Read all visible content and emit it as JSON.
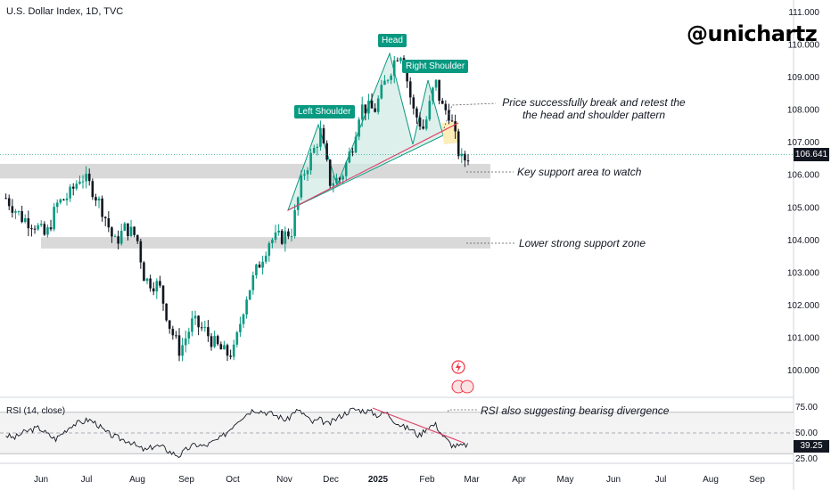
{
  "header": {
    "title": "U.S. Dollar Index, 1D, TVC",
    "brand": "@unichartz"
  },
  "rsi_panel": {
    "title": "RSI (14, close)",
    "current": "39.25"
  },
  "price_badge": "106.641",
  "annotations": {
    "left_shoulder": "Left Shoulder",
    "head": "Head",
    "right_shoulder": "Right Shoulder",
    "break_note": "Price successfully break and retest the the head and shoulder pattern",
    "key_support": "Key support area to watch",
    "lower_support": "Lower strong support zone",
    "rsi_note": "RSI also suggesting bearisg divergence"
  },
  "colors": {
    "up": "#089981",
    "down": "#131722",
    "zone": "#d9d9d9",
    "pattern_fill": "#cfe9e2",
    "neckline": "#e0446a",
    "rsi_line": "#131722",
    "rsi_trend": "#e0446a"
  },
  "chart_data": {
    "type": "candlestick",
    "instrument": "U.S. Dollar Index",
    "timeframe": "1D",
    "y_axis": {
      "ticks": [
        100.0,
        101.0,
        102.0,
        103.0,
        104.0,
        105.0,
        106.0,
        107.0,
        108.0,
        109.0,
        110.0,
        111.0
      ],
      "range": [
        99.7,
        111.3
      ]
    },
    "x_axis": {
      "ticks": [
        "Jun",
        "Jul",
        "Aug",
        "Sep",
        "Oct",
        "Nov",
        "Dec",
        "2025",
        "Feb",
        "Mar",
        "Apr",
        "May",
        "Jun",
        "Jul",
        "Aug",
        "Sep"
      ]
    },
    "close_path": [
      {
        "t": "2024-05-10",
        "c": 105.3
      },
      {
        "t": "2024-05-20",
        "c": 104.7
      },
      {
        "t": "2024-05-28",
        "c": 104.5
      },
      {
        "t": "2024-06-04",
        "c": 104.1
      },
      {
        "t": "2024-06-11",
        "c": 105.1
      },
      {
        "t": "2024-06-19",
        "c": 105.4
      },
      {
        "t": "2024-06-26",
        "c": 106.0
      },
      {
        "t": "2024-07-03",
        "c": 105.6
      },
      {
        "t": "2024-07-10",
        "c": 104.9
      },
      {
        "t": "2024-07-17",
        "c": 103.9
      },
      {
        "t": "2024-07-24",
        "c": 104.4
      },
      {
        "t": "2024-07-31",
        "c": 104.1
      },
      {
        "t": "2024-08-05",
        "c": 102.8
      },
      {
        "t": "2024-08-14",
        "c": 102.6
      },
      {
        "t": "2024-08-21",
        "c": 101.3
      },
      {
        "t": "2024-08-27",
        "c": 100.6
      },
      {
        "t": "2024-09-04",
        "c": 101.5
      },
      {
        "t": "2024-09-12",
        "c": 101.2
      },
      {
        "t": "2024-09-18",
        "c": 100.8
      },
      {
        "t": "2024-09-25",
        "c": 100.5
      },
      {
        "t": "2024-09-30",
        "c": 100.6
      },
      {
        "t": "2024-10-07",
        "c": 102.2
      },
      {
        "t": "2024-10-15",
        "c": 103.2
      },
      {
        "t": "2024-10-22",
        "c": 104.0
      },
      {
        "t": "2024-10-30",
        "c": 104.1
      },
      {
        "t": "2024-11-05",
        "c": 104.3
      },
      {
        "t": "2024-11-12",
        "c": 106.0
      },
      {
        "t": "2024-11-21",
        "c": 107.0
      },
      {
        "t": "2024-11-22",
        "c": 107.6
      },
      {
        "t": "2024-11-29",
        "c": 105.8
      },
      {
        "t": "2024-12-06",
        "c": 105.9
      },
      {
        "t": "2024-12-13",
        "c": 106.9
      },
      {
        "t": "2024-12-18",
        "c": 108.1
      },
      {
        "t": "2024-12-27",
        "c": 108.0
      },
      {
        "t": "2025-01-03",
        "c": 108.9
      },
      {
        "t": "2025-01-10",
        "c": 109.7
      },
      {
        "t": "2025-01-13",
        "c": 109.8
      },
      {
        "t": "2025-01-20",
        "c": 108.0
      },
      {
        "t": "2025-01-27",
        "c": 107.4
      },
      {
        "t": "2025-02-03",
        "c": 108.9
      },
      {
        "t": "2025-02-07",
        "c": 108.1
      },
      {
        "t": "2025-02-12",
        "c": 107.9
      },
      {
        "t": "2025-02-17",
        "c": 106.8
      },
      {
        "t": "2025-02-20",
        "c": 106.4
      },
      {
        "t": "2025-02-24",
        "c": 106.64
      }
    ],
    "last_price": 106.641,
    "zones": [
      {
        "name": "Key support area to watch",
        "from": 105.9,
        "to": 106.35
      },
      {
        "name": "Lower strong support zone",
        "from": 103.75,
        "to": 104.1
      }
    ],
    "rsi": {
      "period": 14,
      "levels": [
        25.0,
        50.0,
        75.0
      ],
      "band": [
        30,
        70
      ],
      "values": [
        48,
        45,
        50,
        53,
        55,
        49,
        44,
        51,
        58,
        60,
        63,
        59,
        51,
        47,
        44,
        42,
        36,
        33,
        38,
        36,
        31,
        28,
        35,
        39,
        37,
        41,
        45,
        53,
        62,
        68,
        73,
        71,
        69,
        66,
        62,
        72,
        69,
        60,
        63,
        58,
        64,
        69,
        73,
        72,
        71,
        67,
        70,
        62,
        56,
        54,
        47,
        56,
        58,
        46,
        38,
        37,
        39.25
      ]
    }
  }
}
